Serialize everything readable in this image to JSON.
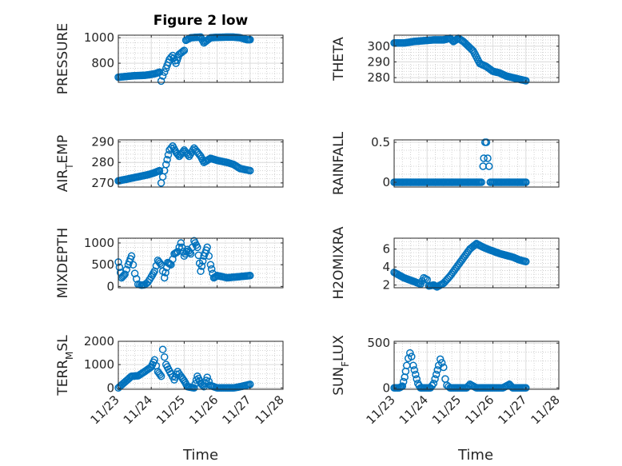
{
  "figure_title": "Figure 2 low",
  "xlabel": "Time",
  "x_ticks": [
    "11/23",
    "11/24",
    "11/25",
    "11/26",
    "11/27",
    "11/28"
  ],
  "colors": {
    "marker": "#0072BD",
    "axis": "#262626",
    "grid": "#c8c8c8",
    "background": "#ffffff"
  },
  "chart_data": [
    {
      "type": "scatter",
      "ylabel": "PRESSURE",
      "title": "Figure 2 low",
      "xlim": [
        0,
        5
      ],
      "ylim": [
        650,
        1020
      ],
      "yticks": [
        800,
        1000
      ],
      "ytick_labels": [
        "800",
        "1000"
      ],
      "grid": true,
      "knots": [
        [
          0,
          690
        ],
        [
          0.2,
          695
        ],
        [
          0.4,
          700
        ],
        [
          0.6,
          703
        ],
        [
          0.8,
          705
        ],
        [
          1.0,
          712
        ],
        [
          1.15,
          720
        ],
        [
          1.25,
          730
        ],
        [
          1.3,
          660
        ],
        [
          1.35,
          700
        ],
        [
          1.45,
          760
        ],
        [
          1.55,
          830
        ],
        [
          1.65,
          860
        ],
        [
          1.75,
          800
        ],
        [
          1.85,
          870
        ],
        [
          2.0,
          900
        ],
        [
          2.05,
          980
        ],
        [
          2.2,
          1000
        ],
        [
          2.5,
          1005
        ],
        [
          2.6,
          960
        ],
        [
          2.8,
          1000
        ],
        [
          3.0,
          1003
        ],
        [
          3.3,
          1005
        ],
        [
          3.5,
          1005
        ],
        [
          3.7,
          1000
        ],
        [
          3.9,
          985
        ],
        [
          4.0,
          985
        ]
      ]
    },
    {
      "type": "scatter",
      "ylabel": "THETA",
      "xlim": [
        0,
        5
      ],
      "ylim": [
        277,
        307
      ],
      "yticks": [
        280,
        290,
        300
      ],
      "ytick_labels": [
        "280",
        "290",
        "300"
      ],
      "grid": true,
      "knots": [
        [
          0,
          302
        ],
        [
          0.3,
          302
        ],
        [
          0.6,
          303
        ],
        [
          0.9,
          303.5
        ],
        [
          1.2,
          304
        ],
        [
          1.5,
          304
        ],
        [
          1.7,
          305
        ],
        [
          1.8,
          303
        ],
        [
          1.95,
          305
        ],
        [
          2.1,
          303
        ],
        [
          2.25,
          300
        ],
        [
          2.4,
          297
        ],
        [
          2.5,
          293
        ],
        [
          2.6,
          289
        ],
        [
          2.8,
          287
        ],
        [
          3.0,
          284
        ],
        [
          3.2,
          283
        ],
        [
          3.4,
          281
        ],
        [
          3.6,
          280
        ],
        [
          3.8,
          279
        ],
        [
          4.0,
          278
        ]
      ]
    },
    {
      "type": "scatter",
      "ylabel": "AIR_TEMP",
      "ylabel_main": "AIR",
      "ylabel_sub": "T",
      "ylabel_rest": "EMP",
      "xlim": [
        0,
        5
      ],
      "ylim": [
        268,
        291
      ],
      "yticks": [
        270,
        280,
        290
      ],
      "ytick_labels": [
        "270",
        "280",
        "290"
      ],
      "grid": true,
      "knots": [
        [
          0,
          271
        ],
        [
          0.3,
          272
        ],
        [
          0.6,
          273
        ],
        [
          0.9,
          274
        ],
        [
          1.1,
          275
        ],
        [
          1.25,
          276
        ],
        [
          1.3,
          270
        ],
        [
          1.35,
          273
        ],
        [
          1.45,
          279
        ],
        [
          1.55,
          286
        ],
        [
          1.65,
          288
        ],
        [
          1.75,
          285
        ],
        [
          1.85,
          283
        ],
        [
          2.0,
          286
        ],
        [
          2.15,
          283
        ],
        [
          2.3,
          287
        ],
        [
          2.5,
          283
        ],
        [
          2.6,
          280
        ],
        [
          2.8,
          282
        ],
        [
          3.0,
          281
        ],
        [
          3.3,
          280
        ],
        [
          3.5,
          279
        ],
        [
          3.7,
          277
        ],
        [
          4.0,
          276
        ]
      ]
    },
    {
      "type": "scatter",
      "ylabel": "RAINFALL",
      "xlim": [
        0,
        5
      ],
      "ylim": [
        -0.06,
        0.53
      ],
      "yticks": [
        0,
        0.5
      ],
      "ytick_labels": [
        "0",
        "0.5"
      ],
      "grid": true,
      "knots": [
        [
          0,
          0
        ],
        [
          2.65,
          0
        ],
        [
          2.7,
          0.2
        ],
        [
          2.72,
          0.3
        ],
        [
          2.76,
          0.5
        ],
        [
          2.8,
          0.5
        ],
        [
          2.84,
          0.3
        ],
        [
          2.88,
          0.2
        ],
        [
          2.92,
          0
        ],
        [
          4.0,
          0
        ]
      ]
    },
    {
      "type": "scatter",
      "ylabel": "MIXDEPTH",
      "xlim": [
        0,
        5
      ],
      "ylim": [
        -30,
        1110
      ],
      "yticks": [
        0,
        500,
        1000
      ],
      "ytick_labels": [
        "0",
        "500",
        "1000"
      ],
      "grid": true,
      "knots": [
        [
          0,
          560
        ],
        [
          0.1,
          200
        ],
        [
          0.2,
          280
        ],
        [
          0.3,
          500
        ],
        [
          0.4,
          700
        ],
        [
          0.5,
          300
        ],
        [
          0.6,
          50
        ],
        [
          0.7,
          30
        ],
        [
          0.8,
          40
        ],
        [
          0.9,
          100
        ],
        [
          1.0,
          220
        ],
        [
          1.1,
          350
        ],
        [
          1.2,
          600
        ],
        [
          1.3,
          500
        ],
        [
          1.4,
          200
        ],
        [
          1.5,
          550
        ],
        [
          1.6,
          500
        ],
        [
          1.7,
          750
        ],
        [
          1.8,
          800
        ],
        [
          1.9,
          1000
        ],
        [
          2.0,
          700
        ],
        [
          2.1,
          850
        ],
        [
          2.2,
          750
        ],
        [
          2.3,
          1050
        ],
        [
          2.4,
          900
        ],
        [
          2.5,
          350
        ],
        [
          2.6,
          700
        ],
        [
          2.7,
          900
        ],
        [
          2.8,
          500
        ],
        [
          2.9,
          200
        ],
        [
          3.0,
          250
        ],
        [
          3.3,
          200
        ],
        [
          3.6,
          220
        ],
        [
          4.0,
          250
        ]
      ]
    },
    {
      "type": "scatter",
      "ylabel": "H2OMIXRA",
      "xlim": [
        0,
        5
      ],
      "ylim": [
        1.7,
        7.2
      ],
      "yticks": [
        2,
        4,
        6
      ],
      "ytick_labels": [
        "2",
        "4",
        "6"
      ],
      "grid": true,
      "knots": [
        [
          0,
          3.4
        ],
        [
          0.3,
          2.8
        ],
        [
          0.6,
          2.4
        ],
        [
          0.8,
          2.1
        ],
        [
          0.9,
          2.8
        ],
        [
          1.0,
          2.6
        ],
        [
          1.05,
          1.9
        ],
        [
          1.2,
          2.0
        ],
        [
          1.3,
          1.8
        ],
        [
          1.5,
          2.2
        ],
        [
          1.7,
          3.0
        ],
        [
          1.9,
          4.0
        ],
        [
          2.1,
          5.0
        ],
        [
          2.3,
          6.0
        ],
        [
          2.5,
          6.6
        ],
        [
          2.7,
          6.2
        ],
        [
          2.9,
          5.9
        ],
        [
          3.2,
          5.5
        ],
        [
          3.4,
          5.3
        ],
        [
          3.6,
          5.1
        ],
        [
          3.8,
          4.8
        ],
        [
          4.0,
          4.6
        ]
      ]
    },
    {
      "type": "scatter",
      "ylabel": "TERR_MSL",
      "ylabel_main": "TERR",
      "ylabel_sub": "M",
      "ylabel_rest": "SL",
      "xlim": [
        0,
        5
      ],
      "ylim": [
        -60,
        2000
      ],
      "yticks": [
        0,
        1000,
        2000
      ],
      "ytick_labels": [
        "0",
        "1000",
        "2000"
      ],
      "grid": true,
      "knots": [
        [
          0,
          0
        ],
        [
          0.2,
          250
        ],
        [
          0.4,
          500
        ],
        [
          0.6,
          520
        ],
        [
          0.8,
          700
        ],
        [
          1.0,
          900
        ],
        [
          1.1,
          1200
        ],
        [
          1.2,
          700
        ],
        [
          1.3,
          500
        ],
        [
          1.35,
          1650
        ],
        [
          1.45,
          1000
        ],
        [
          1.6,
          600
        ],
        [
          1.7,
          350
        ],
        [
          1.8,
          700
        ],
        [
          1.9,
          500
        ],
        [
          2.0,
          300
        ],
        [
          2.1,
          50
        ],
        [
          2.3,
          0
        ],
        [
          2.4,
          500
        ],
        [
          2.5,
          200
        ],
        [
          2.6,
          50
        ],
        [
          2.7,
          450
        ],
        [
          2.8,
          100
        ],
        [
          3.0,
          0
        ],
        [
          3.5,
          0
        ],
        [
          3.7,
          50
        ],
        [
          4.0,
          150
        ]
      ]
    },
    {
      "type": "scatter",
      "ylabel": "SUN_FLUX",
      "ylabel_main": "SUN",
      "ylabel_sub": "F",
      "ylabel_rest": "LUX",
      "xlim": [
        0,
        5
      ],
      "ylim": [
        -15,
        520
      ],
      "yticks": [
        0,
        500
      ],
      "ytick_labels": [
        "0",
        "500"
      ],
      "grid": true,
      "knots": [
        [
          0,
          0
        ],
        [
          0.15,
          0
        ],
        [
          0.25,
          20
        ],
        [
          0.32,
          120
        ],
        [
          0.38,
          250
        ],
        [
          0.43,
          330
        ],
        [
          0.48,
          390
        ],
        [
          0.53,
          350
        ],
        [
          0.58,
          250
        ],
        [
          0.65,
          150
        ],
        [
          0.72,
          50
        ],
        [
          0.8,
          0
        ],
        [
          1.1,
          0
        ],
        [
          1.2,
          50
        ],
        [
          1.28,
          150
        ],
        [
          1.35,
          250
        ],
        [
          1.4,
          320
        ],
        [
          1.45,
          280
        ],
        [
          1.5,
          230
        ],
        [
          1.55,
          100
        ],
        [
          1.6,
          30
        ],
        [
          1.7,
          0
        ],
        [
          2.2,
          0
        ],
        [
          2.3,
          40
        ],
        [
          2.5,
          0
        ],
        [
          3.0,
          0
        ],
        [
          3.3,
          0
        ],
        [
          3.5,
          40
        ],
        [
          3.6,
          0
        ],
        [
          4.0,
          0
        ]
      ]
    }
  ]
}
